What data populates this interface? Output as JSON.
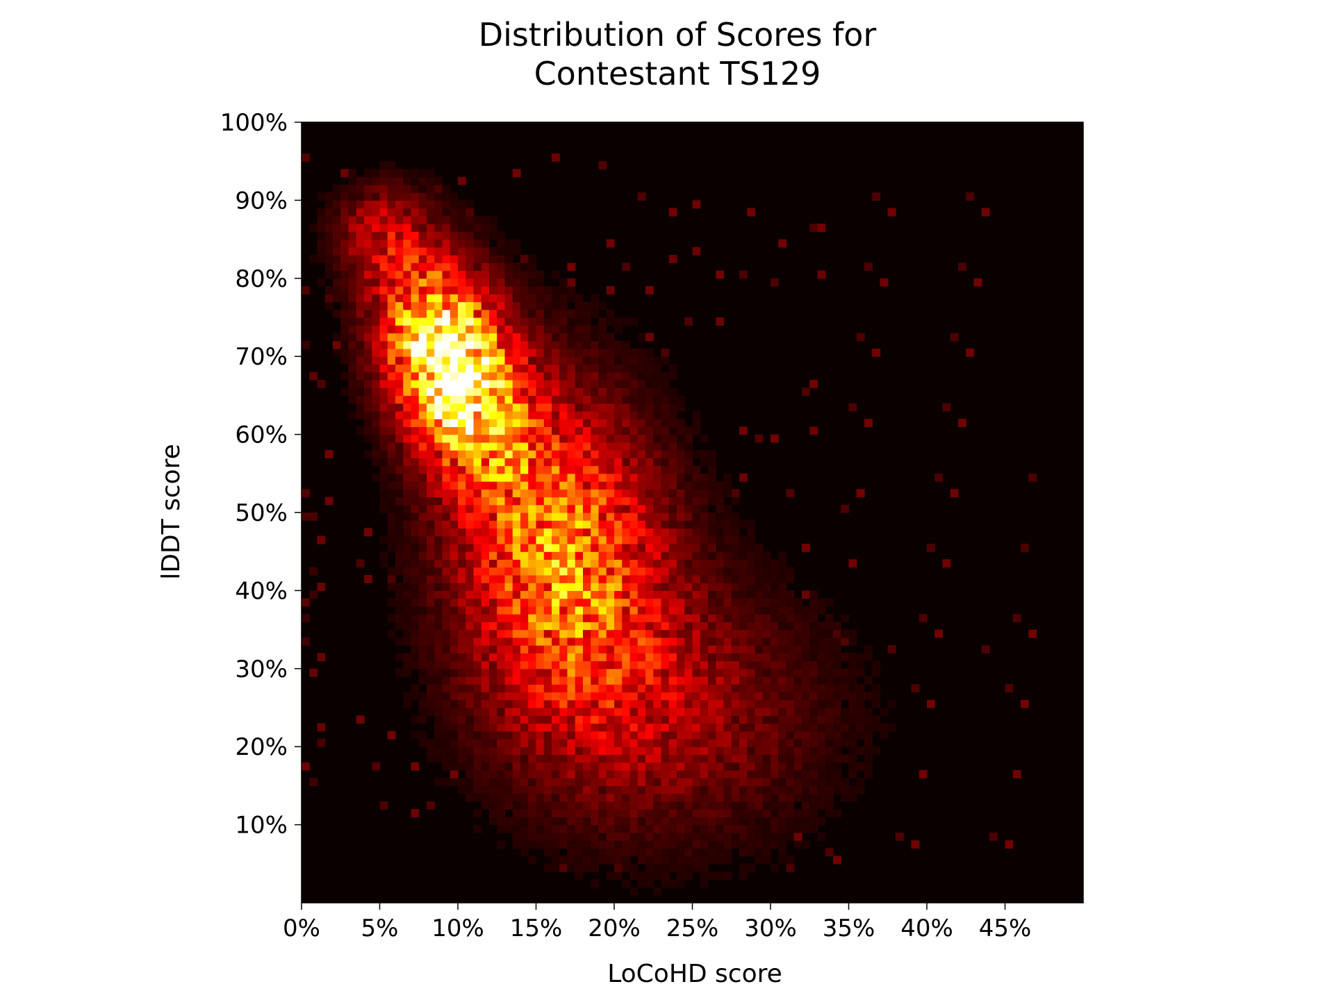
{
  "chart_data": {
    "type": "heatmap",
    "title_lines": [
      "Distribution of Scores for",
      "Contestant TS129"
    ],
    "xlabel": "LoCoHD score",
    "ylabel": "lDDT score",
    "xlim": [
      0,
      0.5
    ],
    "ylim": [
      0,
      1.0
    ],
    "x_ticks": [
      {
        "value": 0.0,
        "label": "0%"
      },
      {
        "value": 0.05,
        "label": "5%"
      },
      {
        "value": 0.1,
        "label": "10%"
      },
      {
        "value": 0.15,
        "label": "15%"
      },
      {
        "value": 0.2,
        "label": "20%"
      },
      {
        "value": 0.25,
        "label": "25%"
      },
      {
        "value": 0.3,
        "label": "30%"
      },
      {
        "value": 0.35,
        "label": "35%"
      },
      {
        "value": 0.4,
        "label": "40%"
      },
      {
        "value": 0.45,
        "label": "45%"
      }
    ],
    "y_ticks": [
      {
        "value": 0.1,
        "label": "10%"
      },
      {
        "value": 0.2,
        "label": "20%"
      },
      {
        "value": 0.3,
        "label": "30%"
      },
      {
        "value": 0.4,
        "label": "40%"
      },
      {
        "value": 0.5,
        "label": "50%"
      },
      {
        "value": 0.6,
        "label": "60%"
      },
      {
        "value": 0.7,
        "label": "70%"
      },
      {
        "value": 0.8,
        "label": "80%"
      },
      {
        "value": 0.9,
        "label": "90%"
      },
      {
        "value": 1.0,
        "label": "100%"
      }
    ],
    "bins": [
      100,
      100
    ],
    "colormap": "hot",
    "background_color": "#0b0000",
    "density_components": [
      {
        "cx": 0.095,
        "cy": 0.69,
        "sx": 0.028,
        "sy": 0.085,
        "rho": -0.35,
        "weight": 1.0
      },
      {
        "cx": 0.165,
        "cy": 0.45,
        "sx": 0.045,
        "sy": 0.14,
        "rho": -0.15,
        "weight": 0.55
      },
      {
        "cx": 0.23,
        "cy": 0.25,
        "sx": 0.07,
        "sy": 0.11,
        "rho": -0.05,
        "weight": 0.2
      },
      {
        "cx": 0.05,
        "cy": 0.86,
        "sx": 0.02,
        "sy": 0.04,
        "rho": 0.0,
        "weight": 0.22
      }
    ],
    "peak": {
      "x": 0.105,
      "y": 0.665
    }
  }
}
